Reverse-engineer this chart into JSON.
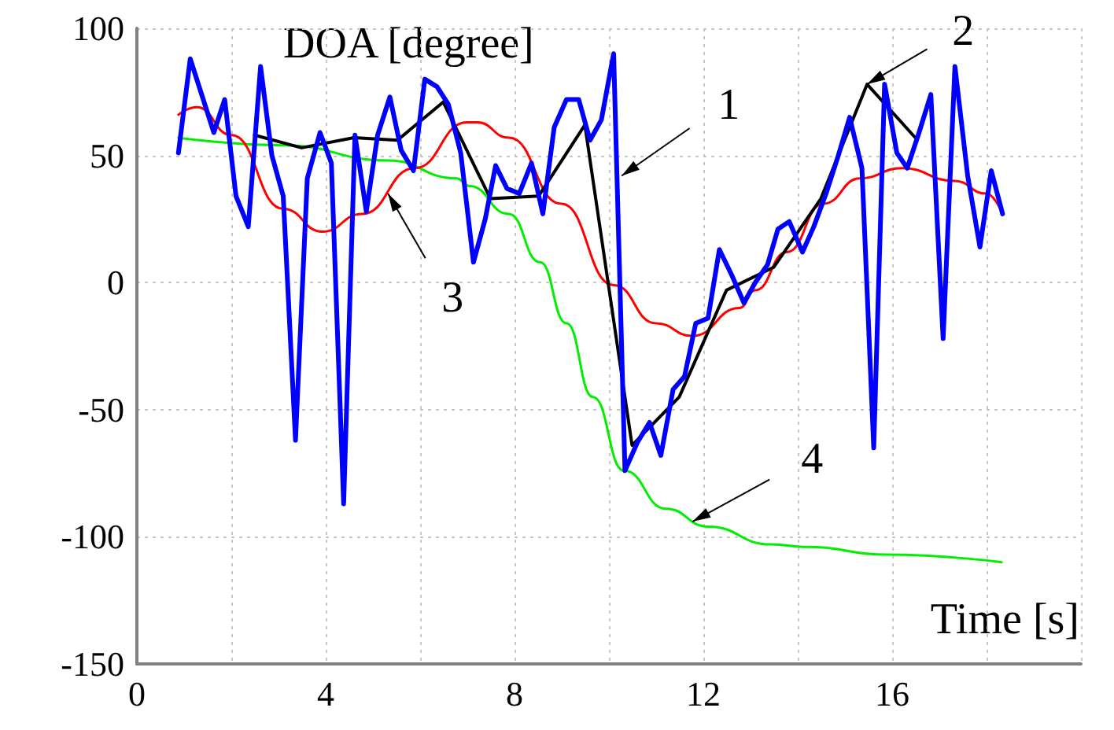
{
  "chart_data": {
    "type": "line",
    "xlabel": "Time [s]",
    "ylabel": "DOA [degree]",
    "xlim": [
      0,
      20
    ],
    "xticks": [
      0,
      {
        "value": 2,
        "label": null
      },
      4,
      {
        "value": 6,
        "label": null
      },
      8,
      {
        "value": 10,
        "label": null
      },
      12,
      {
        "value": 14,
        "label": null
      },
      16,
      {
        "value": 18,
        "label": null
      },
      {
        "value": 20,
        "label": null
      }
    ],
    "ylim": [
      -150,
      100
    ],
    "yticks": [
      -150,
      -100,
      -50,
      0,
      50,
      100
    ],
    "grid": true,
    "marker": "none",
    "line_style": "solid",
    "series": [
      {
        "color": "#0000ff",
        "x": [
          0.88,
          1.13,
          1.63,
          1.86,
          2.1,
          2.36,
          2.62,
          2.86,
          3.1,
          3.36,
          3.61,
          3.88,
          4.12,
          4.38,
          4.62,
          4.86,
          5.1,
          5.36,
          5.6,
          5.86,
          6.1,
          6.36,
          6.6,
          6.86,
          7.13,
          7.38,
          7.6,
          7.84,
          8.1,
          8.36,
          8.6,
          8.84,
          9.1,
          9.36,
          9.6,
          9.84,
          10.1,
          10.34,
          10.6,
          10.86,
          11.1,
          11.36,
          11.6,
          11.84,
          12.1,
          12.34,
          12.6,
          12.86,
          13.1,
          13.36,
          13.58,
          13.82,
          14.1,
          14.34,
          14.6,
          14.86,
          15.1,
          15.36,
          15.61,
          15.84,
          16.1,
          16.32,
          16.57,
          16.82,
          17.08,
          17.33,
          17.6,
          17.86,
          18.1,
          18.34
        ],
        "values": [
          51,
          88,
          59,
          72,
          34,
          22,
          85,
          50,
          34,
          -62,
          41,
          59,
          47,
          -87,
          58,
          28,
          58,
          73,
          52,
          44,
          80,
          77,
          70,
          51,
          8,
          25,
          46,
          37,
          35,
          47,
          27,
          61,
          72,
          72,
          56,
          64,
          90,
          -74,
          -63,
          -55,
          -68,
          -42,
          -37,
          -16,
          -14,
          13,
          3,
          -8,
          0,
          7,
          21,
          24,
          12,
          22,
          35,
          50,
          65,
          45,
          -65,
          78,
          51,
          45,
          59,
          74,
          -22,
          85,
          42,
          14,
          44,
          27
        ]
      },
      {
        "color": "#000000",
        "x": [
          2.49,
          3.49,
          4.6,
          5.52,
          6.49,
          7.49,
          8.51,
          9.49,
          10.49,
          11.49,
          12.49,
          13.49,
          14.49,
          15.47,
          16.49
        ],
        "values": [
          58,
          53,
          57,
          56,
          71,
          33,
          34,
          62,
          -64,
          -45,
          -3,
          6,
          33,
          78,
          57
        ]
      },
      {
        "color": "#ff0000",
        "x": [
          0.88,
          1.27,
          2.0,
          3.1,
          3.93,
          4.77,
          5.88,
          6.99,
          7.21,
          7.88,
          8.99,
          10.1,
          10.99,
          11.77,
          12.77,
          13.1,
          13.77,
          14.54,
          15.32,
          16.21,
          17.32,
          17.99,
          18.34
        ],
        "values": [
          66,
          69,
          58,
          29,
          20,
          27,
          45,
          63,
          63,
          57,
          31,
          -1,
          -16,
          -21,
          -10,
          -3,
          12,
          31,
          41,
          45,
          40,
          35,
          27
        ]
      },
      {
        "color": "#00ee00",
        "x": [
          0.88,
          3.1,
          5.32,
          6.77,
          7.04,
          7.88,
          8.54,
          9.1,
          9.66,
          10.32,
          11.21,
          12.1,
          13.43,
          14.21,
          15.88,
          18.32
        ],
        "values": [
          57,
          54,
          48,
          41,
          38,
          27,
          8,
          -16,
          -45,
          -74,
          -89,
          -96,
          -103,
          -104,
          -107,
          -110
        ]
      }
    ],
    "annotations": [
      {
        "text": "1",
        "x": 10.27,
        "y": 42
      },
      {
        "text": "2",
        "x": 15.47,
        "y": 78
      },
      {
        "text": "3",
        "x": 5.32,
        "y": 35
      },
      {
        "text": "4",
        "x": 11.77,
        "y": -94
      }
    ]
  }
}
